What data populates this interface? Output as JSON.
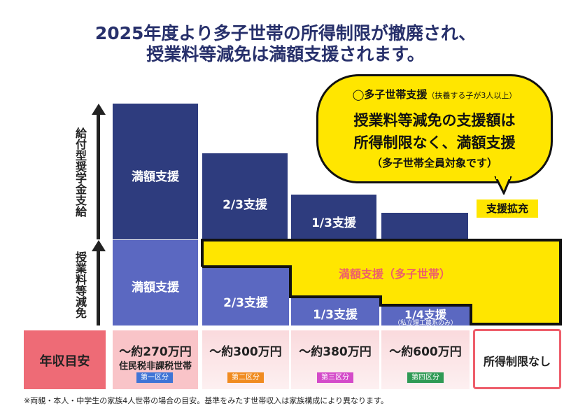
{
  "title": {
    "line1": "2025年度より多子世帯の所得制限が撤廃され、",
    "line2": "授業料等減免は満額支援されます。"
  },
  "axes": {
    "upper_label": "給付型奨学金支給",
    "lower_label": "授業料等減免"
  },
  "columns": [
    {
      "scholarship_label": "満額支援",
      "tuition_label": "満額支援",
      "income": "〜約270万円",
      "income_note": "住民税非課税世帯",
      "tier": "第一区分",
      "tier_color": "#3f74d6"
    },
    {
      "scholarship_label": "2/3支援",
      "tuition_label": "2/3支援",
      "income": "〜約300万円",
      "income_note": "",
      "tier": "第二区分",
      "tier_color": "#f08b20"
    },
    {
      "scholarship_label": "1/3支援",
      "tuition_label": "1/3支援",
      "income": "〜約380万円",
      "income_note": "",
      "tier": "第三区分",
      "tier_color": "#d44bc9"
    },
    {
      "scholarship_label": "",
      "tuition_label": "1/4支援",
      "tuition_note": "（私立理工農系のみ）",
      "income": "〜約600万円",
      "income_note": "",
      "tier": "第四区分",
      "tier_color": "#2f9a55"
    }
  ],
  "multi_child_label": "満額支援（多子世帯）",
  "bubble": {
    "subtitle": "◯多子世帯支援",
    "subtitle_small": "（扶養する子が3人以上）",
    "line1": "授業料等減免の支援額は",
    "line2": "所得制限なく、満額支援",
    "note": "（多子世帯全員対象です）"
  },
  "expand_label": "支援拡充",
  "income_header": "年収目安",
  "no_limit_label": "所得制限なし",
  "footnote": "※両親・本人・中学生の家族4人世帯の場合の目安。基準をみたす世帯収入は家族構成により異なります。",
  "colors": {
    "navy": "#2e3c7e",
    "blue": "#5b68c1",
    "yellow": "#ffe600",
    "coral": "#ee6b76",
    "title": "#27306b"
  }
}
